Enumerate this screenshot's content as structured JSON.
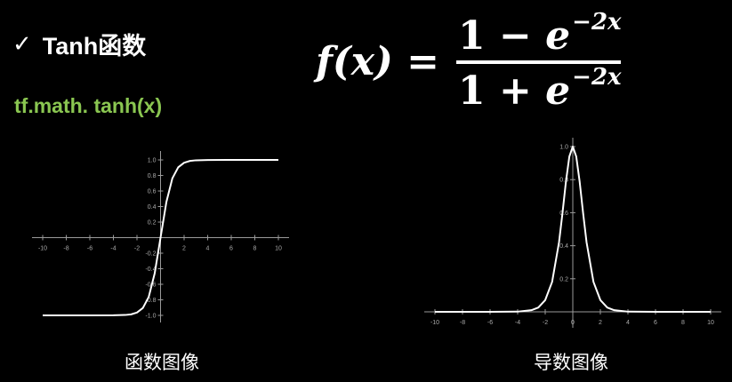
{
  "slide": {
    "title_check": "✓",
    "title": "Tanh函数",
    "code": "tf.math. tanh(x)",
    "formula": {
      "lhs": "f(x) =",
      "numerator_const": "1",
      "numerator_op": "−",
      "denominator_const": "1",
      "denominator_op": "+",
      "base": "e",
      "exponent": "−2x"
    }
  },
  "chart_data": [
    {
      "type": "line",
      "function": "tanh",
      "caption": "函数图像",
      "xlim": [
        -10,
        10
      ],
      "ylim": [
        -1,
        1
      ],
      "x_ticks": [
        -10,
        -8,
        -6,
        -4,
        -2,
        2,
        4,
        6,
        8,
        10
      ],
      "x_tick_labels": [
        "-10",
        "-8",
        "-6",
        "-4",
        "-2",
        "2",
        "4",
        "6",
        "8",
        "10"
      ],
      "y_ticks": [
        1.0,
        0.8,
        0.6,
        0.4,
        0.2,
        -0.2,
        -0.4,
        -0.6,
        -0.8,
        -1.0
      ],
      "y_tick_labels": [
        "1.0",
        "0.8",
        "0.6",
        "0.4",
        "0.2",
        "-0.2",
        "-0.4",
        "-0.6",
        "-0.8",
        "-1.0"
      ],
      "x": [
        -10,
        -8,
        -6,
        -4,
        -3,
        -2.5,
        -2,
        -1.5,
        -1,
        -0.5,
        0,
        0.5,
        1,
        1.5,
        2,
        2.5,
        3,
        4,
        6,
        8,
        10
      ],
      "y": [
        -1.0,
        -1.0,
        -1.0,
        -0.999,
        -0.995,
        -0.987,
        -0.964,
        -0.905,
        -0.762,
        -0.462,
        0.0,
        0.462,
        0.762,
        0.905,
        0.964,
        0.987,
        0.995,
        0.999,
        1.0,
        1.0,
        1.0
      ],
      "grid": false,
      "line_color": "#ffffff"
    },
    {
      "type": "line",
      "function": "tanh derivative",
      "caption": "导数图像",
      "xlim": [
        -10,
        10
      ],
      "ylim": [
        0,
        1
      ],
      "x_ticks": [
        -10,
        -8,
        -6,
        -4,
        -2,
        0,
        2,
        4,
        6,
        8,
        10
      ],
      "x_tick_labels": [
        "-10",
        "-8",
        "-6",
        "-4",
        "-2",
        "0",
        "2",
        "4",
        "6",
        "8",
        "10"
      ],
      "y_ticks": [
        1.0,
        0.8,
        0.6,
        0.4,
        0.2
      ],
      "y_tick_labels": [
        "1.0",
        "0.8",
        "0.6",
        "0.4",
        "0.2"
      ],
      "x": [
        -10,
        -8,
        -6,
        -4,
        -3,
        -2.5,
        -2,
        -1.5,
        -1,
        -0.75,
        -0.5,
        -0.25,
        0,
        0.25,
        0.5,
        0.75,
        1,
        1.5,
        2,
        2.5,
        3,
        4,
        6,
        8,
        10
      ],
      "y": [
        0.0,
        0.0,
        0.0,
        0.001,
        0.01,
        0.026,
        0.071,
        0.181,
        0.42,
        0.596,
        0.786,
        0.94,
        1.0,
        0.94,
        0.786,
        0.596,
        0.42,
        0.181,
        0.071,
        0.026,
        0.01,
        0.001,
        0.0,
        0.0,
        0.0
      ],
      "grid": false,
      "line_color": "#ffffff"
    }
  ]
}
